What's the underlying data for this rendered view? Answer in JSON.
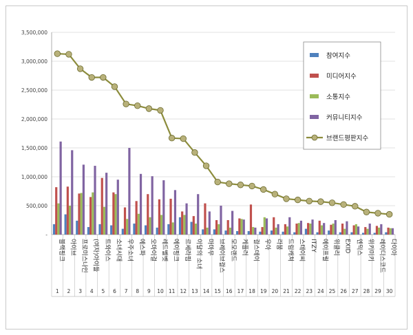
{
  "chart_data": {
    "type": "bar",
    "y_axis": {
      "min": 0,
      "max": 3500000,
      "tick_labels": [
        "-",
        "500,000",
        "1,000,000",
        "1,500,000",
        "2,000,000",
        "2,500,000",
        "3,000,000",
        "3,500,000"
      ]
    },
    "categories": [
      "블랙핑크",
      "아이브",
      "프로미스나인",
      "(여자)아이들",
      "트와이스",
      "소녀시대",
      "우주소녀",
      "에스파",
      "오마이걸",
      "레드벨벳",
      "에이핑크",
      "르세라핌",
      "이달의 소녀",
      "마마무",
      "브레이브걸스",
      "모모랜드",
      "케플러",
      "걸스데이",
      "우아",
      "라붐",
      "드림캐쳐",
      "스테이씨",
      "ITZY",
      "에이프릴",
      "위클리",
      "EXID",
      "엔믹스",
      "위키미키",
      "레이디스코드",
      "다이아"
    ],
    "ranks": [
      "1",
      "2",
      "3",
      "4",
      "5",
      "6",
      "7",
      "8",
      "9",
      "10",
      "11",
      "12",
      "13",
      "14",
      "15",
      "16",
      "17",
      "18",
      "19",
      "20",
      "21",
      "22",
      "23",
      "24",
      "25",
      "26",
      "27",
      "28",
      "29",
      "30"
    ],
    "series": [
      {
        "name": "참여지수",
        "color": "#4f81bd",
        "values": [
          180000,
          350000,
          240000,
          130000,
          180000,
          160000,
          100000,
          190000,
          160000,
          120000,
          180000,
          300000,
          220000,
          90000,
          90000,
          70000,
          60000,
          60000,
          50000,
          70000,
          50000,
          40000,
          100000,
          40000,
          70000,
          40000,
          40000,
          30000,
          30000,
          40000
        ]
      },
      {
        "name": "미디어지수",
        "color": "#c0504d",
        "values": [
          820000,
          830000,
          710000,
          650000,
          980000,
          730000,
          470000,
          580000,
          700000,
          610000,
          620000,
          400000,
          320000,
          540000,
          250000,
          250000,
          280000,
          520000,
          130000,
          300000,
          180000,
          190000,
          200000,
          240000,
          170000,
          190000,
          160000,
          130000,
          150000,
          120000
        ]
      },
      {
        "name": "소통지수",
        "color": "#9bbb59",
        "values": [
          540000,
          500000,
          720000,
          730000,
          480000,
          700000,
          270000,
          360000,
          300000,
          340000,
          210000,
          340000,
          190000,
          120000,
          180000,
          120000,
          270000,
          130000,
          300000,
          120000,
          140000,
          200000,
          190000,
          160000,
          190000,
          100000,
          180000,
          100000,
          120000,
          110000
        ]
      },
      {
        "name": "커뮤니티지수",
        "color": "#8064a2",
        "values": [
          1610000,
          1460000,
          1210000,
          1190000,
          1070000,
          950000,
          1500000,
          1050000,
          1010000,
          940000,
          770000,
          540000,
          700000,
          400000,
          500000,
          410000,
          260000,
          120000,
          280000,
          180000,
          300000,
          240000,
          260000,
          200000,
          250000,
          230000,
          140000,
          190000,
          180000,
          110000
        ]
      }
    ],
    "line_series": {
      "name": "브랜드평판지수",
      "color": "#8c8c3c",
      "marker_color": "#b8b17a",
      "values": [
        3130000,
        3120000,
        2870000,
        2720000,
        2720000,
        2560000,
        2260000,
        2230000,
        2180000,
        2150000,
        1670000,
        1660000,
        1420000,
        1190000,
        910000,
        880000,
        860000,
        840000,
        780000,
        700000,
        620000,
        600000,
        580000,
        570000,
        550000,
        520000,
        490000,
        390000,
        370000,
        350000
      ]
    },
    "legend_position": "right"
  }
}
